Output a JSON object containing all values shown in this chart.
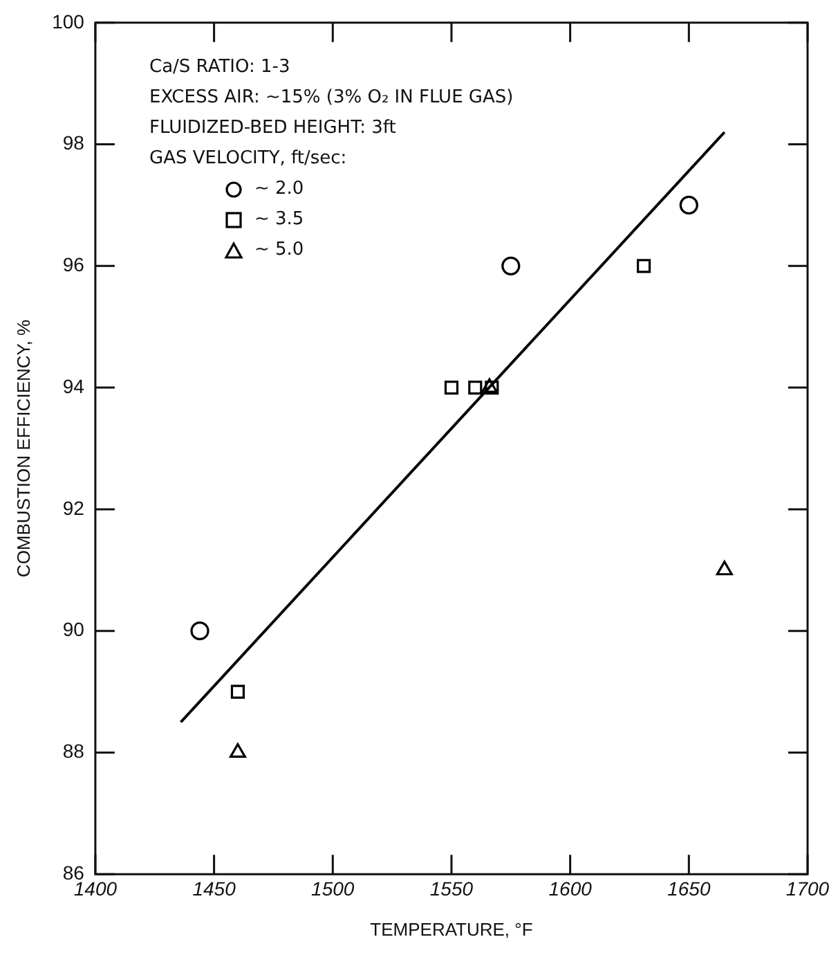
{
  "chart_data": {
    "type": "scatter",
    "xlabel": "TEMPERATURE, °F",
    "ylabel": "COMBUSTION EFFICIENCY, %",
    "legend_title": "GAS VELOCITY, ft/sec:",
    "annotations": [
      "Ca/S RATIO: 1-3",
      "EXCESS AIR: ~15% (3% O₂ IN FLUE GAS)",
      "FLUIDIZED-BED HEIGHT: 3ft"
    ],
    "series": [
      {
        "name": "~ 2.0",
        "color": "#000000",
        "marker": "circle",
        "x": [
          1444,
          1575,
          1650
        ],
        "values": [
          90,
          96,
          97
        ]
      },
      {
        "name": "~ 3.5",
        "color": "#000000",
        "marker": "square",
        "x": [
          1460,
          1550,
          1560,
          1567,
          1631
        ],
        "values": [
          89,
          94,
          94,
          94,
          96
        ]
      },
      {
        "name": "~ 5.0",
        "color": "#000000",
        "marker": "triangle",
        "x": [
          1460,
          1566,
          1665
        ],
        "values": [
          88,
          94,
          91
        ]
      },
      {
        "type": "line",
        "color": "#000000",
        "marker": "none",
        "x": [
          1436,
          1665
        ],
        "values": [
          88.5,
          98.2
        ]
      }
    ],
    "xlim": [
      1400,
      1700
    ],
    "xticks": [
      1400,
      1450,
      1500,
      1550,
      1600,
      1650,
      1700
    ],
    "ylim": [
      86,
      100
    ],
    "yticks": [
      86,
      88,
      90,
      92,
      94,
      96,
      98,
      100
    ],
    "grid": false,
    "legend": "top left"
  }
}
